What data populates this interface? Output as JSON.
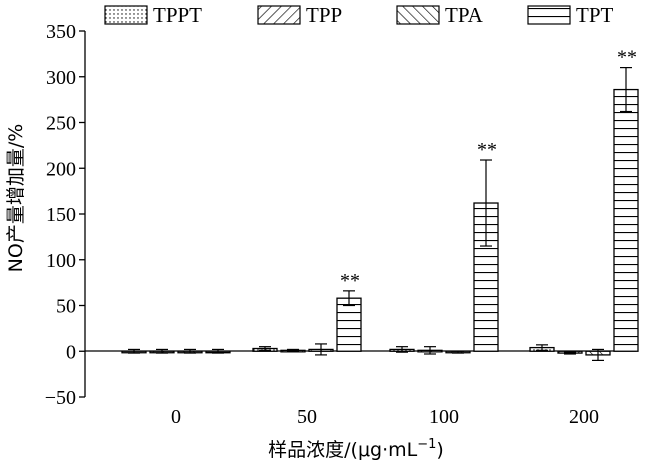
{
  "chart_data": {
    "type": "bar",
    "categories": [
      "0",
      "50",
      "100",
      "200"
    ],
    "series": [
      {
        "name": "TPPT",
        "pattern": "dots",
        "values": [
          0,
          3,
          2,
          4
        ],
        "errors": [
          2,
          2,
          3,
          3
        ]
      },
      {
        "name": "TPP",
        "pattern": "diag-right",
        "values": [
          0,
          1,
          1,
          -2
        ],
        "errors": [
          2,
          1,
          4,
          1
        ]
      },
      {
        "name": "TPA",
        "pattern": "diag-left",
        "values": [
          0,
          2,
          -1,
          -4
        ],
        "errors": [
          2,
          6,
          1,
          6
        ]
      },
      {
        "name": "TPT",
        "pattern": "horizontal",
        "values": [
          0,
          58,
          162,
          286
        ],
        "errors": [
          2,
          8,
          47,
          24
        ],
        "annotations": [
          "",
          "**",
          "**",
          "**"
        ]
      }
    ],
    "xlabel": "样品浓度/(μg·mL",
    "xlabel_sup": "−1",
    "xlabel_close": ")",
    "ylabel": "NO产量增加量/%",
    "ylim": [
      -50,
      350
    ],
    "yticks": [
      "−50",
      "0",
      "50",
      "100",
      "150",
      "200",
      "250",
      "300",
      "350"
    ],
    "ytick_values": [
      -50,
      0,
      50,
      100,
      150,
      200,
      250,
      300,
      350
    ],
    "legend_position": "top",
    "grid": false,
    "colors": {
      "stroke": "#000000",
      "fill": "#ffffff"
    }
  }
}
